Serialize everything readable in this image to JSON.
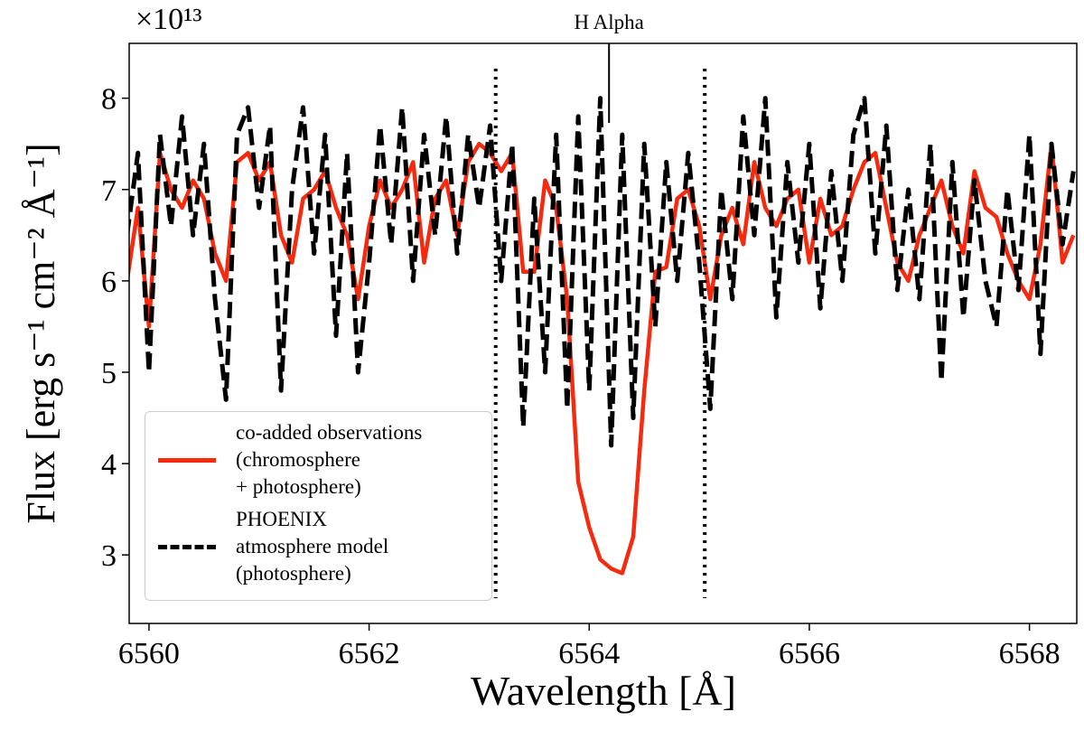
{
  "chart_data": {
    "type": "line",
    "xlabel": "Wavelength [Å]",
    "ylabel": "Flux [erg s⁻¹ cm⁻² Å⁻¹]",
    "y_offset_label": "×10¹³",
    "annotation": {
      "text": "H Alpha",
      "x": 6564.18,
      "y": 7.73
    },
    "vlines": [
      6563.15,
      6565.05
    ],
    "x": [
      6559.8,
      6559.9,
      6560.0,
      6560.1,
      6560.2,
      6560.3,
      6560.4,
      6560.5,
      6560.6,
      6560.7,
      6560.8,
      6560.9,
      6561.0,
      6561.1,
      6561.2,
      6561.3,
      6561.4,
      6561.5,
      6561.6,
      6561.7,
      6561.8,
      6561.9,
      6562.0,
      6562.1,
      6562.2,
      6562.3,
      6562.4,
      6562.5,
      6562.6,
      6562.7,
      6562.8,
      6562.9,
      6563.0,
      6563.1,
      6563.2,
      6563.3,
      6563.4,
      6563.5,
      6563.6,
      6563.7,
      6563.8,
      6563.9,
      6564.0,
      6564.1,
      6564.2,
      6564.3,
      6564.4,
      6564.5,
      6564.6,
      6564.7,
      6564.8,
      6564.9,
      6565.0,
      6565.1,
      6565.2,
      6565.3,
      6565.4,
      6565.5,
      6565.6,
      6565.7,
      6565.8,
      6565.9,
      6566.0,
      6566.1,
      6566.2,
      6566.3,
      6566.4,
      6566.5,
      6566.6,
      6566.7,
      6566.8,
      6566.9,
      6567.0,
      6567.1,
      6567.2,
      6567.3,
      6567.4,
      6567.5,
      6567.6,
      6567.7,
      6567.8,
      6567.9,
      6568.0,
      6568.1,
      6568.2,
      6568.3,
      6568.4
    ],
    "series": [
      {
        "name": "co-added observations\n(chromosphere\n+ photosphere)",
        "color": "#f52a0e",
        "style": "solid",
        "values": [
          6.0,
          6.8,
          5.5,
          7.4,
          7.0,
          6.8,
          7.1,
          6.9,
          6.3,
          6.0,
          7.3,
          7.4,
          7.1,
          7.3,
          6.5,
          6.2,
          6.9,
          7.0,
          7.2,
          6.8,
          6.5,
          5.8,
          6.6,
          7.1,
          6.8,
          7.0,
          7.3,
          6.2,
          6.9,
          7.1,
          6.5,
          7.3,
          7.5,
          7.4,
          7.2,
          7.4,
          6.1,
          6.1,
          7.1,
          6.8,
          5.8,
          3.8,
          3.3,
          2.95,
          2.85,
          2.8,
          3.2,
          4.8,
          6.1,
          6.15,
          6.9,
          7.0,
          6.6,
          5.8,
          6.5,
          6.8,
          6.4,
          7.3,
          6.8,
          6.6,
          6.9,
          7.0,
          6.2,
          6.9,
          6.5,
          6.6,
          7.0,
          7.3,
          7.4,
          6.8,
          6.2,
          6.0,
          6.5,
          6.8,
          7.1,
          6.6,
          6.3,
          7.2,
          6.8,
          6.7,
          6.3,
          6.0,
          5.8,
          6.4,
          7.5,
          6.2,
          6.5
        ]
      },
      {
        "name": "PHOENIX\natmosphere model\n(photosphere)",
        "color": "#000000",
        "style": "dashed",
        "values": [
          6.5,
          7.4,
          5.0,
          7.6,
          6.6,
          7.8,
          6.5,
          7.5,
          5.8,
          4.7,
          7.6,
          7.9,
          6.8,
          7.7,
          4.8,
          7.0,
          7.9,
          6.3,
          7.6,
          5.4,
          7.4,
          5.0,
          6.2,
          7.7,
          6.4,
          7.9,
          6.0,
          7.6,
          6.5,
          7.8,
          6.3,
          7.6,
          6.8,
          7.7,
          6.0,
          7.5,
          4.4,
          6.9,
          5.0,
          7.6,
          4.6,
          7.8,
          4.8,
          8.0,
          4.2,
          7.6,
          4.5,
          7.5,
          5.5,
          7.3,
          6.0,
          7.4,
          6.2,
          4.6,
          7.0,
          5.8,
          7.8,
          6.5,
          8.0,
          5.6,
          7.3,
          6.2,
          7.5,
          5.7,
          7.2,
          6.0,
          7.6,
          8.0,
          6.3,
          7.7,
          5.9,
          7.0,
          5.8,
          7.5,
          4.9,
          7.3,
          5.6,
          7.1,
          6.0,
          5.5,
          7.0,
          5.9,
          7.6,
          5.2,
          7.5,
          6.4,
          7.2
        ]
      }
    ],
    "xlim": [
      6559.82,
      6568.43
    ],
    "ylim": [
      2.25,
      8.6
    ],
    "xticks": [
      6560,
      6562,
      6564,
      6566,
      6568
    ],
    "yticks": [
      3,
      4,
      5,
      6,
      7,
      8
    ],
    "legend": "lower left"
  }
}
